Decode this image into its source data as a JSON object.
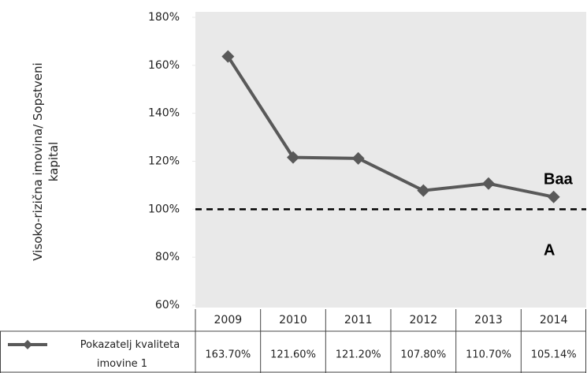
{
  "chart_data": {
    "type": "line",
    "y_label": "Visoko-rizična imovina/ Sopstveni kapital",
    "categories": [
      "2009",
      "2010",
      "2011",
      "2012",
      "2013",
      "2014"
    ],
    "series": [
      {
        "name": "Pokazatelj kvaliteta imovine 1",
        "color": "#595959",
        "values": [
          163.7,
          121.6,
          121.2,
          107.8,
          110.7,
          105.14
        ],
        "value_labels": [
          "163.70%",
          "121.60%",
          "121.20%",
          "107.80%",
          "110.70%",
          "105.14%"
        ]
      }
    ],
    "ylim": [
      60,
      180
    ],
    "yticks": [
      {
        "value": 60,
        "label": "60%"
      },
      {
        "value": 80,
        "label": "80%"
      },
      {
        "value": 100,
        "label": "100%"
      },
      {
        "value": 120,
        "label": "120%"
      },
      {
        "value": 140,
        "label": "140%"
      },
      {
        "value": 160,
        "label": "160%"
      },
      {
        "value": 180,
        "label": "180%"
      }
    ],
    "reference_line": 100,
    "annotations": [
      "Baa",
      "A"
    ]
  }
}
